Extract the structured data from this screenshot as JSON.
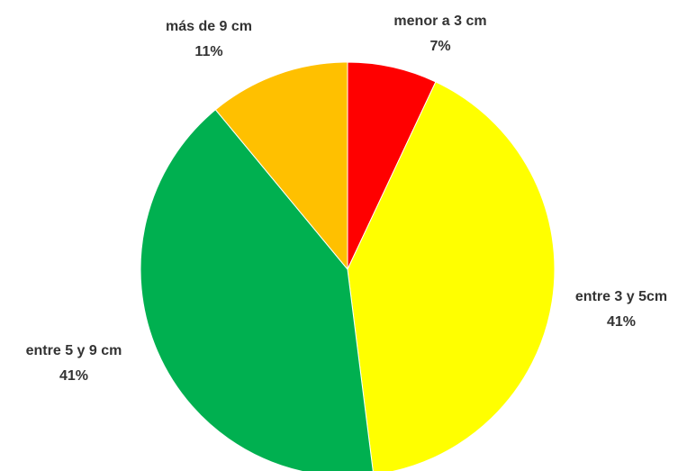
{
  "chart_data": {
    "type": "pie",
    "categories": [
      "menor a 3 cm",
      "entre 3 y 5cm",
      "entre 5 y 9 cm",
      "más de 9 cm"
    ],
    "values": [
      7,
      41,
      41,
      11
    ],
    "value_labels": [
      "7%",
      "41%",
      "41%",
      "11%"
    ],
    "colors": [
      "#ff0000",
      "#ffff00",
      "#00b050",
      "#ffc000"
    ]
  }
}
